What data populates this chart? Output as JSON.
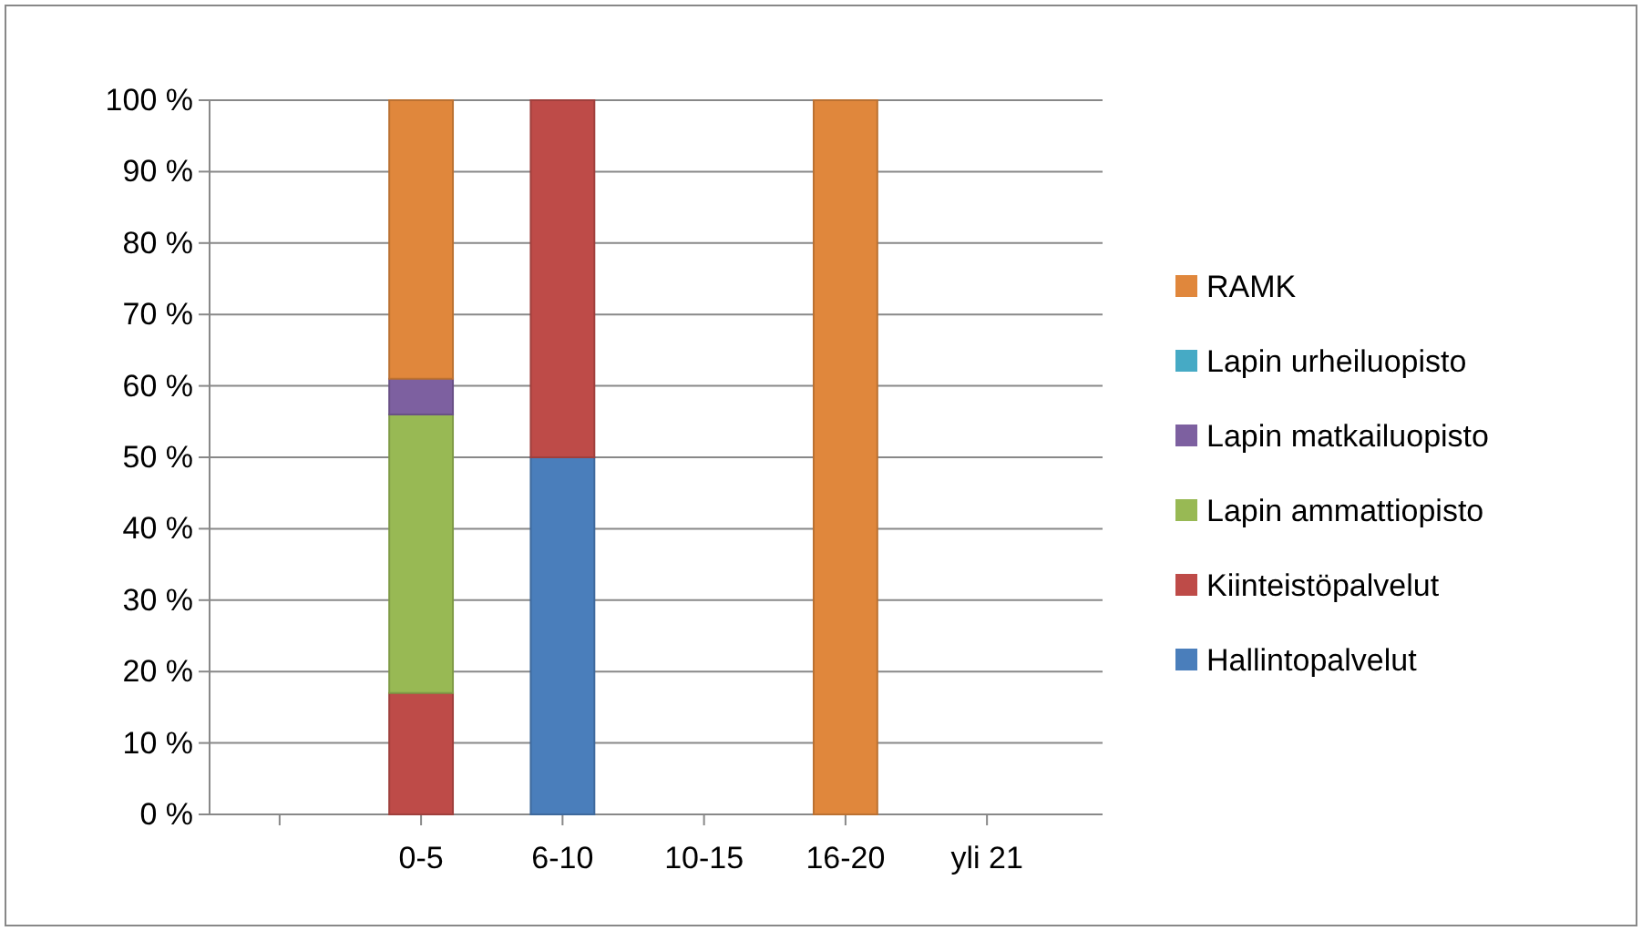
{
  "chart_data": {
    "type": "bar",
    "stacked": true,
    "categories": [
      null,
      "0-5",
      "6-10",
      "10-15",
      "16-20",
      "yli 21"
    ],
    "series": [
      {
        "name": "Hallintopalvelut",
        "color": "#4a7ebb",
        "values": [
          null,
          0,
          50,
          0,
          0,
          0
        ]
      },
      {
        "name": "Kiinteistöpalvelut",
        "color": "#be4b48",
        "values": [
          null,
          17,
          50,
          0,
          0,
          0
        ]
      },
      {
        "name": "Lapin ammattiopisto",
        "color": "#98b954",
        "values": [
          null,
          39,
          0,
          0,
          0,
          0
        ]
      },
      {
        "name": "Lapin matkailuopisto",
        "color": "#7d60a0",
        "values": [
          null,
          5,
          0,
          0,
          0,
          0
        ]
      },
      {
        "name": "Lapin urheiluopisto",
        "color": "#46aac5",
        "values": [
          null,
          0,
          0,
          0,
          0,
          0
        ]
      },
      {
        "name": "RAMK",
        "color": "#e0873c",
        "values": [
          null,
          39,
          0,
          0,
          100,
          0
        ]
      }
    ],
    "ylim": [
      0,
      100
    ],
    "yticks": [
      {
        "value": 0,
        "label": "0 %"
      },
      {
        "value": 10,
        "label": "10 %"
      },
      {
        "value": 20,
        "label": "20 %"
      },
      {
        "value": 30,
        "label": "30 %"
      },
      {
        "value": 40,
        "label": "40 %"
      },
      {
        "value": 50,
        "label": "50 %"
      },
      {
        "value": 60,
        "label": "60 %"
      },
      {
        "value": 70,
        "label": "70 %"
      },
      {
        "value": 80,
        "label": "80 %"
      },
      {
        "value": 90,
        "label": "90 %"
      },
      {
        "value": 100,
        "label": "100 %"
      }
    ],
    "grid": "y",
    "legend": "right"
  }
}
